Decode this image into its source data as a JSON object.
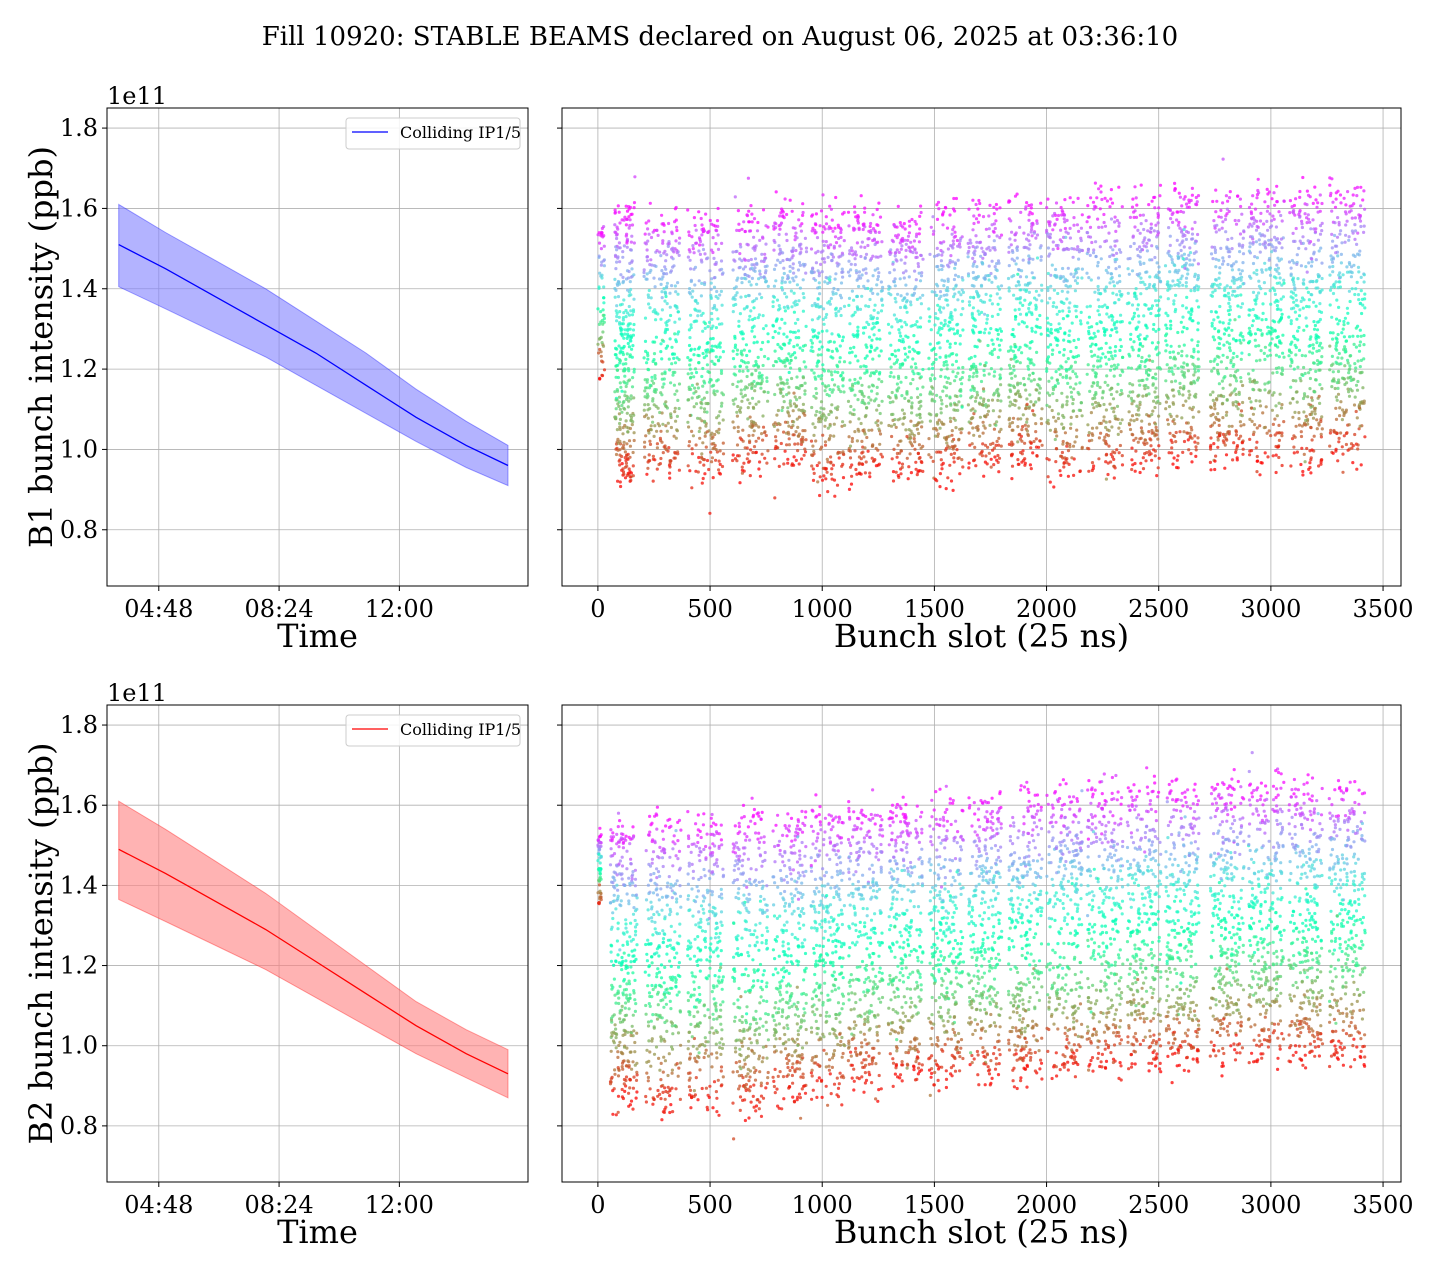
{
  "figure": {
    "title": "Fill 10920: STABLE BEAMS declared on August 06, 2025 at 03:36:10"
  },
  "chart_data": [
    {
      "panel": "B1 time evolution",
      "type": "area",
      "title": "",
      "xlabel": "Time",
      "ylabel": "B1 bunch intensity (ppb)",
      "y_scale_label": "1e11",
      "x_tick_labels": [
        "04:48",
        "08:24",
        "12:00"
      ],
      "y_ticks": [
        0.8,
        1.0,
        1.2,
        1.4,
        1.6,
        1.8
      ],
      "ylim": [
        0.66,
        1.85
      ],
      "xlim": [
        "03:15",
        "15:51"
      ],
      "grid": true,
      "legend": {
        "entries": [
          "Colliding IP1/5"
        ],
        "placement": "top-right"
      },
      "color": "#0000ff",
      "fill_color": "#8080ff",
      "x": [
        "03:36",
        "05:00",
        "06:30",
        "08:00",
        "09:30",
        "11:00",
        "12:30",
        "14:00",
        "15:15"
      ],
      "mean": [
        1.51,
        1.45,
        1.38,
        1.31,
        1.24,
        1.16,
        1.08,
        1.01,
        0.96
      ],
      "upper": [
        1.61,
        1.54,
        1.47,
        1.4,
        1.32,
        1.24,
        1.15,
        1.07,
        1.01
      ],
      "lower": [
        1.405,
        1.35,
        1.29,
        1.23,
        1.16,
        1.09,
        1.02,
        0.955,
        0.91
      ]
    },
    {
      "panel": "B1 bunch pattern",
      "type": "scatter",
      "title": "",
      "xlabel": "Bunch slot (25 ns)",
      "ylabel": "",
      "x_ticks": [
        0,
        500,
        1000,
        1500,
        2000,
        2500,
        3000,
        3500
      ],
      "y_ticks": [
        0.8,
        1.0,
        1.2,
        1.4,
        1.6,
        1.8
      ],
      "xlim": [
        -160,
        3580
      ],
      "ylim": [
        0.66,
        1.85
      ],
      "grid": true,
      "colormap": "rainbow",
      "trains": [
        {
          "start": 75,
          "end": 165,
          "top": 1.6,
          "bottom": 0.92
        },
        {
          "start": 205,
          "end": 365,
          "top": 1.59,
          "bottom": 0.93
        },
        {
          "start": 400,
          "end": 560,
          "top": 1.58,
          "bottom": 0.93
        },
        {
          "start": 600,
          "end": 760,
          "top": 1.59,
          "bottom": 0.95
        },
        {
          "start": 780,
          "end": 930,
          "top": 1.6,
          "bottom": 0.96
        },
        {
          "start": 950,
          "end": 1100,
          "top": 1.59,
          "bottom": 0.92
        },
        {
          "start": 1115,
          "end": 1270,
          "top": 1.59,
          "bottom": 0.93
        },
        {
          "start": 1295,
          "end": 1450,
          "top": 1.58,
          "bottom": 0.93
        },
        {
          "start": 1475,
          "end": 1630,
          "top": 1.6,
          "bottom": 0.93
        },
        {
          "start": 1650,
          "end": 1800,
          "top": 1.61,
          "bottom": 0.95
        },
        {
          "start": 1830,
          "end": 1980,
          "top": 1.62,
          "bottom": 0.96
        },
        {
          "start": 2000,
          "end": 2160,
          "top": 1.62,
          "bottom": 0.93
        },
        {
          "start": 2180,
          "end": 2340,
          "top": 1.63,
          "bottom": 0.94
        },
        {
          "start": 2360,
          "end": 2510,
          "top": 1.63,
          "bottom": 0.95
        },
        {
          "start": 2530,
          "end": 2680,
          "top": 1.64,
          "bottom": 0.97
        },
        {
          "start": 2730,
          "end": 2880,
          "top": 1.64,
          "bottom": 0.97
        },
        {
          "start": 2900,
          "end": 3060,
          "top": 1.65,
          "bottom": 0.97
        },
        {
          "start": 3080,
          "end": 3230,
          "top": 1.64,
          "bottom": 0.96
        },
        {
          "start": 3260,
          "end": 3420,
          "top": 1.65,
          "bottom": 0.98
        }
      ],
      "pilot": {
        "start": 0,
        "end": 30,
        "top": 1.54,
        "bottom": 1.18
      }
    },
    {
      "panel": "B2 time evolution",
      "type": "area",
      "title": "",
      "xlabel": "Time",
      "ylabel": "B2 bunch intensity (ppb)",
      "y_scale_label": "1e11",
      "x_tick_labels": [
        "04:48",
        "08:24",
        "12:00"
      ],
      "y_ticks": [
        0.8,
        1.0,
        1.2,
        1.4,
        1.6,
        1.8
      ],
      "ylim": [
        0.66,
        1.85
      ],
      "xlim": [
        "03:15",
        "15:51"
      ],
      "grid": true,
      "legend": {
        "entries": [
          "Colliding IP1/5"
        ],
        "placement": "top-right"
      },
      "color": "#ff0000",
      "fill_color": "#ff8080",
      "x": [
        "03:36",
        "05:00",
        "06:30",
        "08:00",
        "09:30",
        "11:00",
        "12:30",
        "14:00",
        "15:15"
      ],
      "mean": [
        1.49,
        1.43,
        1.36,
        1.29,
        1.21,
        1.13,
        1.05,
        0.98,
        0.93
      ],
      "upper": [
        1.61,
        1.54,
        1.46,
        1.38,
        1.29,
        1.2,
        1.11,
        1.04,
        0.99
      ],
      "lower": [
        1.365,
        1.31,
        1.25,
        1.19,
        1.12,
        1.05,
        0.98,
        0.92,
        0.87
      ]
    },
    {
      "panel": "B2 bunch pattern",
      "type": "scatter",
      "title": "",
      "xlabel": "Bunch slot (25 ns)",
      "ylabel": "",
      "x_ticks": [
        0,
        500,
        1000,
        1500,
        2000,
        2500,
        3000,
        3500
      ],
      "y_ticks": [
        0.8,
        1.0,
        1.2,
        1.4,
        1.6,
        1.8
      ],
      "xlim": [
        -160,
        3580
      ],
      "ylim": [
        0.66,
        1.85
      ],
      "grid": true,
      "colormap": "rainbow",
      "trains": [
        {
          "start": 55,
          "end": 175,
          "top": 1.56,
          "bottom": 0.86
        },
        {
          "start": 210,
          "end": 370,
          "top": 1.57,
          "bottom": 0.84
        },
        {
          "start": 400,
          "end": 560,
          "top": 1.57,
          "bottom": 0.85
        },
        {
          "start": 600,
          "end": 760,
          "top": 1.58,
          "bottom": 0.83
        },
        {
          "start": 780,
          "end": 930,
          "top": 1.58,
          "bottom": 0.86
        },
        {
          "start": 950,
          "end": 1100,
          "top": 1.59,
          "bottom": 0.88
        },
        {
          "start": 1115,
          "end": 1270,
          "top": 1.6,
          "bottom": 0.9
        },
        {
          "start": 1295,
          "end": 1450,
          "top": 1.6,
          "bottom": 0.91
        },
        {
          "start": 1475,
          "end": 1630,
          "top": 1.61,
          "bottom": 0.91
        },
        {
          "start": 1650,
          "end": 1800,
          "top": 1.62,
          "bottom": 0.92
        },
        {
          "start": 1830,
          "end": 1980,
          "top": 1.63,
          "bottom": 0.92
        },
        {
          "start": 2000,
          "end": 2160,
          "top": 1.64,
          "bottom": 0.93
        },
        {
          "start": 2180,
          "end": 2340,
          "top": 1.64,
          "bottom": 0.94
        },
        {
          "start": 2360,
          "end": 2510,
          "top": 1.65,
          "bottom": 0.95
        },
        {
          "start": 2530,
          "end": 2680,
          "top": 1.65,
          "bottom": 0.95
        },
        {
          "start": 2730,
          "end": 2880,
          "top": 1.66,
          "bottom": 0.96
        },
        {
          "start": 2900,
          "end": 3060,
          "top": 1.66,
          "bottom": 0.96
        },
        {
          "start": 3080,
          "end": 3230,
          "top": 1.66,
          "bottom": 0.96
        },
        {
          "start": 3260,
          "end": 3420,
          "top": 1.66,
          "bottom": 0.96
        }
      ],
      "pilot": {
        "start": 0,
        "end": 15,
        "top": 1.53,
        "bottom": 1.35
      }
    }
  ]
}
